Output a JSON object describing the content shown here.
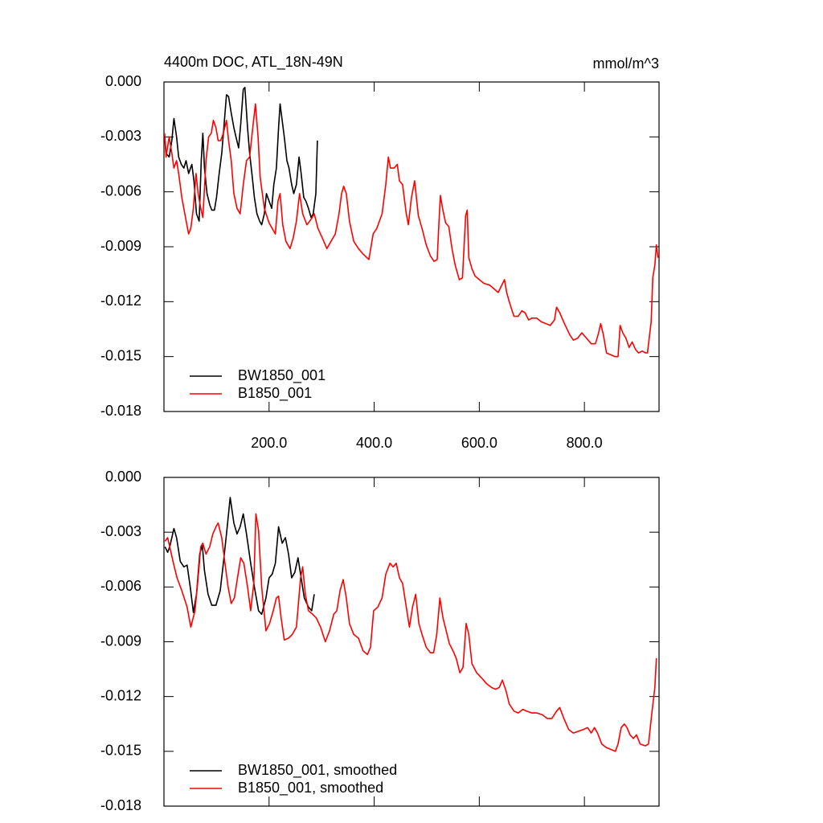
{
  "chart_data": [
    {
      "type": "line",
      "title": "4400m DOC, ATL_18N-49N",
      "unit_label": "mmol/m^3",
      "xlim": [
        0,
        942
      ],
      "xticks": [
        {
          "value": 200,
          "label": "200.0"
        },
        {
          "value": 400,
          "label": "400.0"
        },
        {
          "value": 600,
          "label": "600.0"
        },
        {
          "value": 800,
          "label": "800.0"
        }
      ],
      "xtick_labels": true,
      "ylim": [
        -0.018,
        0
      ],
      "yticks": [
        {
          "value": 0,
          "label": "0.000"
        },
        -0.003,
        -0.006,
        -0.009,
        -0.012,
        -0.015,
        -0.018
      ],
      "legend": "lower left",
      "series": [
        {
          "name": "BW1850_001",
          "color": "#000000",
          "x": [
            1,
            4,
            10,
            15,
            19,
            24,
            28,
            33,
            38,
            42,
            47,
            53,
            57,
            62,
            67,
            71,
            74,
            77,
            82,
            87,
            91,
            96,
            100,
            105,
            110,
            114,
            119,
            123,
            128,
            133,
            137,
            142,
            146,
            151,
            154,
            159,
            163,
            168,
            172,
            177,
            182,
            186,
            191,
            195,
            200,
            205,
            209,
            214,
            218,
            221,
            225,
            229,
            234,
            238,
            243,
            247,
            252,
            257,
            261,
            266,
            270,
            275,
            280,
            284,
            289,
            292
          ],
          "values": [
            -0.0028,
            -0.0039,
            -0.0041,
            -0.0032,
            -0.002,
            -0.003,
            -0.0041,
            -0.0045,
            -0.0047,
            -0.0043,
            -0.005,
            -0.0045,
            -0.0054,
            -0.0072,
            -0.0076,
            -0.0043,
            -0.0028,
            -0.0047,
            -0.0061,
            -0.0067,
            -0.007,
            -0.007,
            -0.0063,
            -0.005,
            -0.0039,
            -0.0025,
            -0.0007,
            -0.0008,
            -0.0017,
            -0.0025,
            -0.003,
            -0.0036,
            -0.0023,
            -0.0004,
            -0.0003,
            -0.0025,
            -0.0039,
            -0.0052,
            -0.0063,
            -0.0072,
            -0.0076,
            -0.0078,
            -0.0072,
            -0.0061,
            -0.0065,
            -0.0069,
            -0.0056,
            -0.0047,
            -0.0025,
            -0.0012,
            -0.0021,
            -0.003,
            -0.0043,
            -0.0047,
            -0.0056,
            -0.0061,
            -0.0056,
            -0.0041,
            -0.005,
            -0.0063,
            -0.0065,
            -0.0069,
            -0.0074,
            -0.0072,
            -0.0061,
            -0.0032
          ]
        },
        {
          "name": "B1850_001",
          "color": "#ff0000",
          "x": [
            1,
            4,
            10,
            15,
            19,
            24,
            28,
            34,
            41,
            47,
            51,
            56,
            61,
            65,
            70,
            74,
            80,
            85,
            90,
            94,
            99,
            103,
            108,
            113,
            119,
            123,
            128,
            133,
            139,
            145,
            151,
            157,
            163,
            169,
            174,
            179,
            183,
            191,
            200,
            206,
            212,
            217,
            221,
            226,
            232,
            240,
            246,
            252,
            258,
            264,
            272,
            280,
            286,
            293,
            301,
            310,
            318,
            326,
            333,
            338,
            342,
            347,
            353,
            361,
            370,
            379,
            390,
            398,
            405,
            415,
            422,
            427,
            431,
            438,
            444,
            448,
            454,
            461,
            465,
            471,
            477,
            484,
            491,
            499,
            507,
            514,
            520,
            523,
            526,
            530,
            536,
            542,
            548,
            554,
            562,
            568,
            574,
            577,
            580,
            586,
            592,
            600,
            609,
            620,
            628,
            636,
            641,
            648,
            652,
            658,
            666,
            674,
            681,
            687,
            694,
            700,
            709,
            718,
            727,
            735,
            743,
            747,
            753,
            762,
            772,
            779,
            787,
            795,
            804,
            813,
            821,
            827,
            831,
            836,
            842,
            850,
            858,
            864,
            868,
            873,
            879,
            885,
            891,
            897,
            903,
            910,
            916,
            920,
            927,
            930,
            934,
            937,
            940
          ],
          "values": [
            -0.0028,
            -0.0041,
            -0.003,
            -0.0039,
            -0.0047,
            -0.0043,
            -0.005,
            -0.0063,
            -0.0074,
            -0.0083,
            -0.008,
            -0.0069,
            -0.005,
            -0.0061,
            -0.0069,
            -0.0074,
            -0.0043,
            -0.003,
            -0.0028,
            -0.0021,
            -0.0025,
            -0.0032,
            -0.0032,
            -0.0028,
            -0.0021,
            -0.0032,
            -0.0043,
            -0.0061,
            -0.0069,
            -0.0072,
            -0.0056,
            -0.0043,
            -0.0041,
            -0.0025,
            -0.0012,
            -0.003,
            -0.0052,
            -0.0069,
            -0.0077,
            -0.008,
            -0.0083,
            -0.0065,
            -0.0061,
            -0.0078,
            -0.0087,
            -0.0091,
            -0.0085,
            -0.0076,
            -0.0061,
            -0.0072,
            -0.0078,
            -0.0075,
            -0.0072,
            -0.008,
            -0.0085,
            -0.0091,
            -0.0087,
            -0.0083,
            -0.0072,
            -0.0061,
            -0.0057,
            -0.0061,
            -0.0076,
            -0.0087,
            -0.0091,
            -0.0094,
            -0.0097,
            -0.0083,
            -0.008,
            -0.0072,
            -0.0056,
            -0.0041,
            -0.0047,
            -0.0047,
            -0.0045,
            -0.0054,
            -0.0056,
            -0.0072,
            -0.0078,
            -0.0063,
            -0.0054,
            -0.0073,
            -0.008,
            -0.0089,
            -0.0095,
            -0.0098,
            -0.0097,
            -0.0078,
            -0.0062,
            -0.0069,
            -0.0077,
            -0.0079,
            -0.0091,
            -0.01,
            -0.0108,
            -0.0107,
            -0.0073,
            -0.007,
            -0.0096,
            -0.0102,
            -0.0106,
            -0.0108,
            -0.011,
            -0.0111,
            -0.0113,
            -0.0115,
            -0.0112,
            -0.0108,
            -0.0115,
            -0.0121,
            -0.0128,
            -0.0128,
            -0.0125,
            -0.0126,
            -0.013,
            -0.0129,
            -0.0129,
            -0.0131,
            -0.0132,
            -0.0133,
            -0.013,
            -0.0123,
            -0.0126,
            -0.0132,
            -0.0138,
            -0.0141,
            -0.014,
            -0.0137,
            -0.014,
            -0.0143,
            -0.0143,
            -0.0137,
            -0.0132,
            -0.0138,
            -0.0148,
            -0.0149,
            -0.015,
            -0.015,
            -0.0133,
            -0.0137,
            -0.014,
            -0.0145,
            -0.0142,
            -0.0146,
            -0.0148,
            -0.0147,
            -0.0148,
            -0.0148,
            -0.0131,
            -0.0107,
            -0.01,
            -0.0089,
            -0.0096
          ]
        }
      ]
    },
    {
      "type": "line",
      "xlim": [
        0,
        942
      ],
      "xticks": [
        200,
        400,
        600,
        800
      ],
      "xtick_labels": false,
      "ylim": [
        -0.018,
        0
      ],
      "yticks": [
        {
          "value": 0,
          "label": "0.000"
        },
        -0.003,
        -0.006,
        -0.009,
        -0.012,
        -0.015,
        -0.018
      ],
      "legend": "lower left",
      "series": [
        {
          "name": "BW1850_001, smoothed",
          "color": "#000000",
          "x": [
            2,
            7,
            11,
            19,
            24,
            31,
            38,
            44,
            50,
            56,
            62,
            68,
            73,
            77,
            84,
            91,
            99,
            107,
            113,
            119,
            126,
            133,
            139,
            145,
            151,
            157,
            165,
            172,
            180,
            186,
            194,
            200,
            206,
            212,
            218,
            225,
            231,
            237,
            243,
            249,
            255,
            261,
            267,
            275,
            281,
            286
          ],
          "values": [
            -0.0038,
            -0.0041,
            -0.0038,
            -0.0028,
            -0.0033,
            -0.0046,
            -0.0049,
            -0.0048,
            -0.006,
            -0.0074,
            -0.0064,
            -0.0042,
            -0.0037,
            -0.0051,
            -0.0064,
            -0.007,
            -0.007,
            -0.0062,
            -0.0047,
            -0.0031,
            -0.0011,
            -0.0025,
            -0.0031,
            -0.0027,
            -0.002,
            -0.0031,
            -0.0047,
            -0.006,
            -0.0073,
            -0.0075,
            -0.0066,
            -0.0055,
            -0.0053,
            -0.0047,
            -0.0027,
            -0.0036,
            -0.0033,
            -0.0042,
            -0.0055,
            -0.0052,
            -0.0044,
            -0.0055,
            -0.0066,
            -0.0071,
            -0.0073,
            -0.0064
          ]
        },
        {
          "name": "B1850_001, smoothed",
          "color": "#ff0000",
          "x": [
            2,
            7,
            11,
            18,
            25,
            34,
            44,
            51,
            59,
            65,
            70,
            74,
            80,
            87,
            93,
            99,
            103,
            110,
            116,
            122,
            128,
            134,
            140,
            146,
            152,
            159,
            165,
            171,
            175,
            180,
            186,
            194,
            201,
            208,
            214,
            218,
            223,
            229,
            237,
            244,
            252,
            260,
            264,
            269,
            275,
            283,
            290,
            298,
            307,
            315,
            323,
            329,
            335,
            341,
            347,
            353,
            361,
            370,
            379,
            387,
            393,
            399,
            407,
            415,
            422,
            430,
            436,
            442,
            448,
            454,
            461,
            467,
            473,
            479,
            485,
            491,
            499,
            507,
            513,
            519,
            525,
            531,
            537,
            543,
            550,
            556,
            563,
            569,
            575,
            580,
            586,
            595,
            605,
            614,
            623,
            631,
            638,
            644,
            651,
            657,
            666,
            674,
            683,
            690,
            700,
            710,
            720,
            729,
            738,
            747,
            753,
            761,
            770,
            779,
            789,
            798,
            806,
            813,
            819,
            825,
            833,
            842,
            851,
            859,
            864,
            870,
            876,
            881,
            887,
            893,
            899,
            906,
            916,
            922,
            928,
            934,
            937
          ],
          "values": [
            -0.0035,
            -0.0033,
            -0.0038,
            -0.0047,
            -0.0055,
            -0.0062,
            -0.0071,
            -0.0082,
            -0.0073,
            -0.0055,
            -0.0038,
            -0.0036,
            -0.0042,
            -0.0038,
            -0.0031,
            -0.0027,
            -0.0025,
            -0.0033,
            -0.0047,
            -0.006,
            -0.0069,
            -0.0066,
            -0.0055,
            -0.0044,
            -0.0047,
            -0.006,
            -0.0073,
            -0.0058,
            -0.002,
            -0.0029,
            -0.006,
            -0.0084,
            -0.008,
            -0.0073,
            -0.0066,
            -0.0065,
            -0.0077,
            -0.0089,
            -0.0088,
            -0.0086,
            -0.0082,
            -0.0055,
            -0.0049,
            -0.0064,
            -0.0073,
            -0.0075,
            -0.0077,
            -0.0082,
            -0.009,
            -0.0084,
            -0.0075,
            -0.0073,
            -0.0062,
            -0.0056,
            -0.0066,
            -0.008,
            -0.0086,
            -0.0088,
            -0.0095,
            -0.0097,
            -0.0093,
            -0.0073,
            -0.0071,
            -0.0066,
            -0.0053,
            -0.0047,
            -0.0049,
            -0.0047,
            -0.0055,
            -0.0058,
            -0.0071,
            -0.0082,
            -0.0071,
            -0.0064,
            -0.008,
            -0.0086,
            -0.0093,
            -0.0096,
            -0.0096,
            -0.0086,
            -0.0066,
            -0.0077,
            -0.0084,
            -0.0091,
            -0.0095,
            -0.0099,
            -0.0107,
            -0.0104,
            -0.008,
            -0.0086,
            -0.0102,
            -0.0107,
            -0.011,
            -0.0113,
            -0.0115,
            -0.0116,
            -0.0115,
            -0.0111,
            -0.0117,
            -0.0124,
            -0.0128,
            -0.0129,
            -0.0127,
            -0.0128,
            -0.0129,
            -0.0129,
            -0.013,
            -0.0132,
            -0.0132,
            -0.0128,
            -0.0126,
            -0.0132,
            -0.0138,
            -0.014,
            -0.0139,
            -0.0138,
            -0.0137,
            -0.014,
            -0.0137,
            -0.014,
            -0.0146,
            -0.0148,
            -0.0149,
            -0.015,
            -0.0146,
            -0.0137,
            -0.0135,
            -0.0137,
            -0.0141,
            -0.0143,
            -0.0141,
            -0.0146,
            -0.0147,
            -0.0146,
            -0.013,
            -0.0115,
            -0.0099
          ]
        }
      ]
    }
  ]
}
